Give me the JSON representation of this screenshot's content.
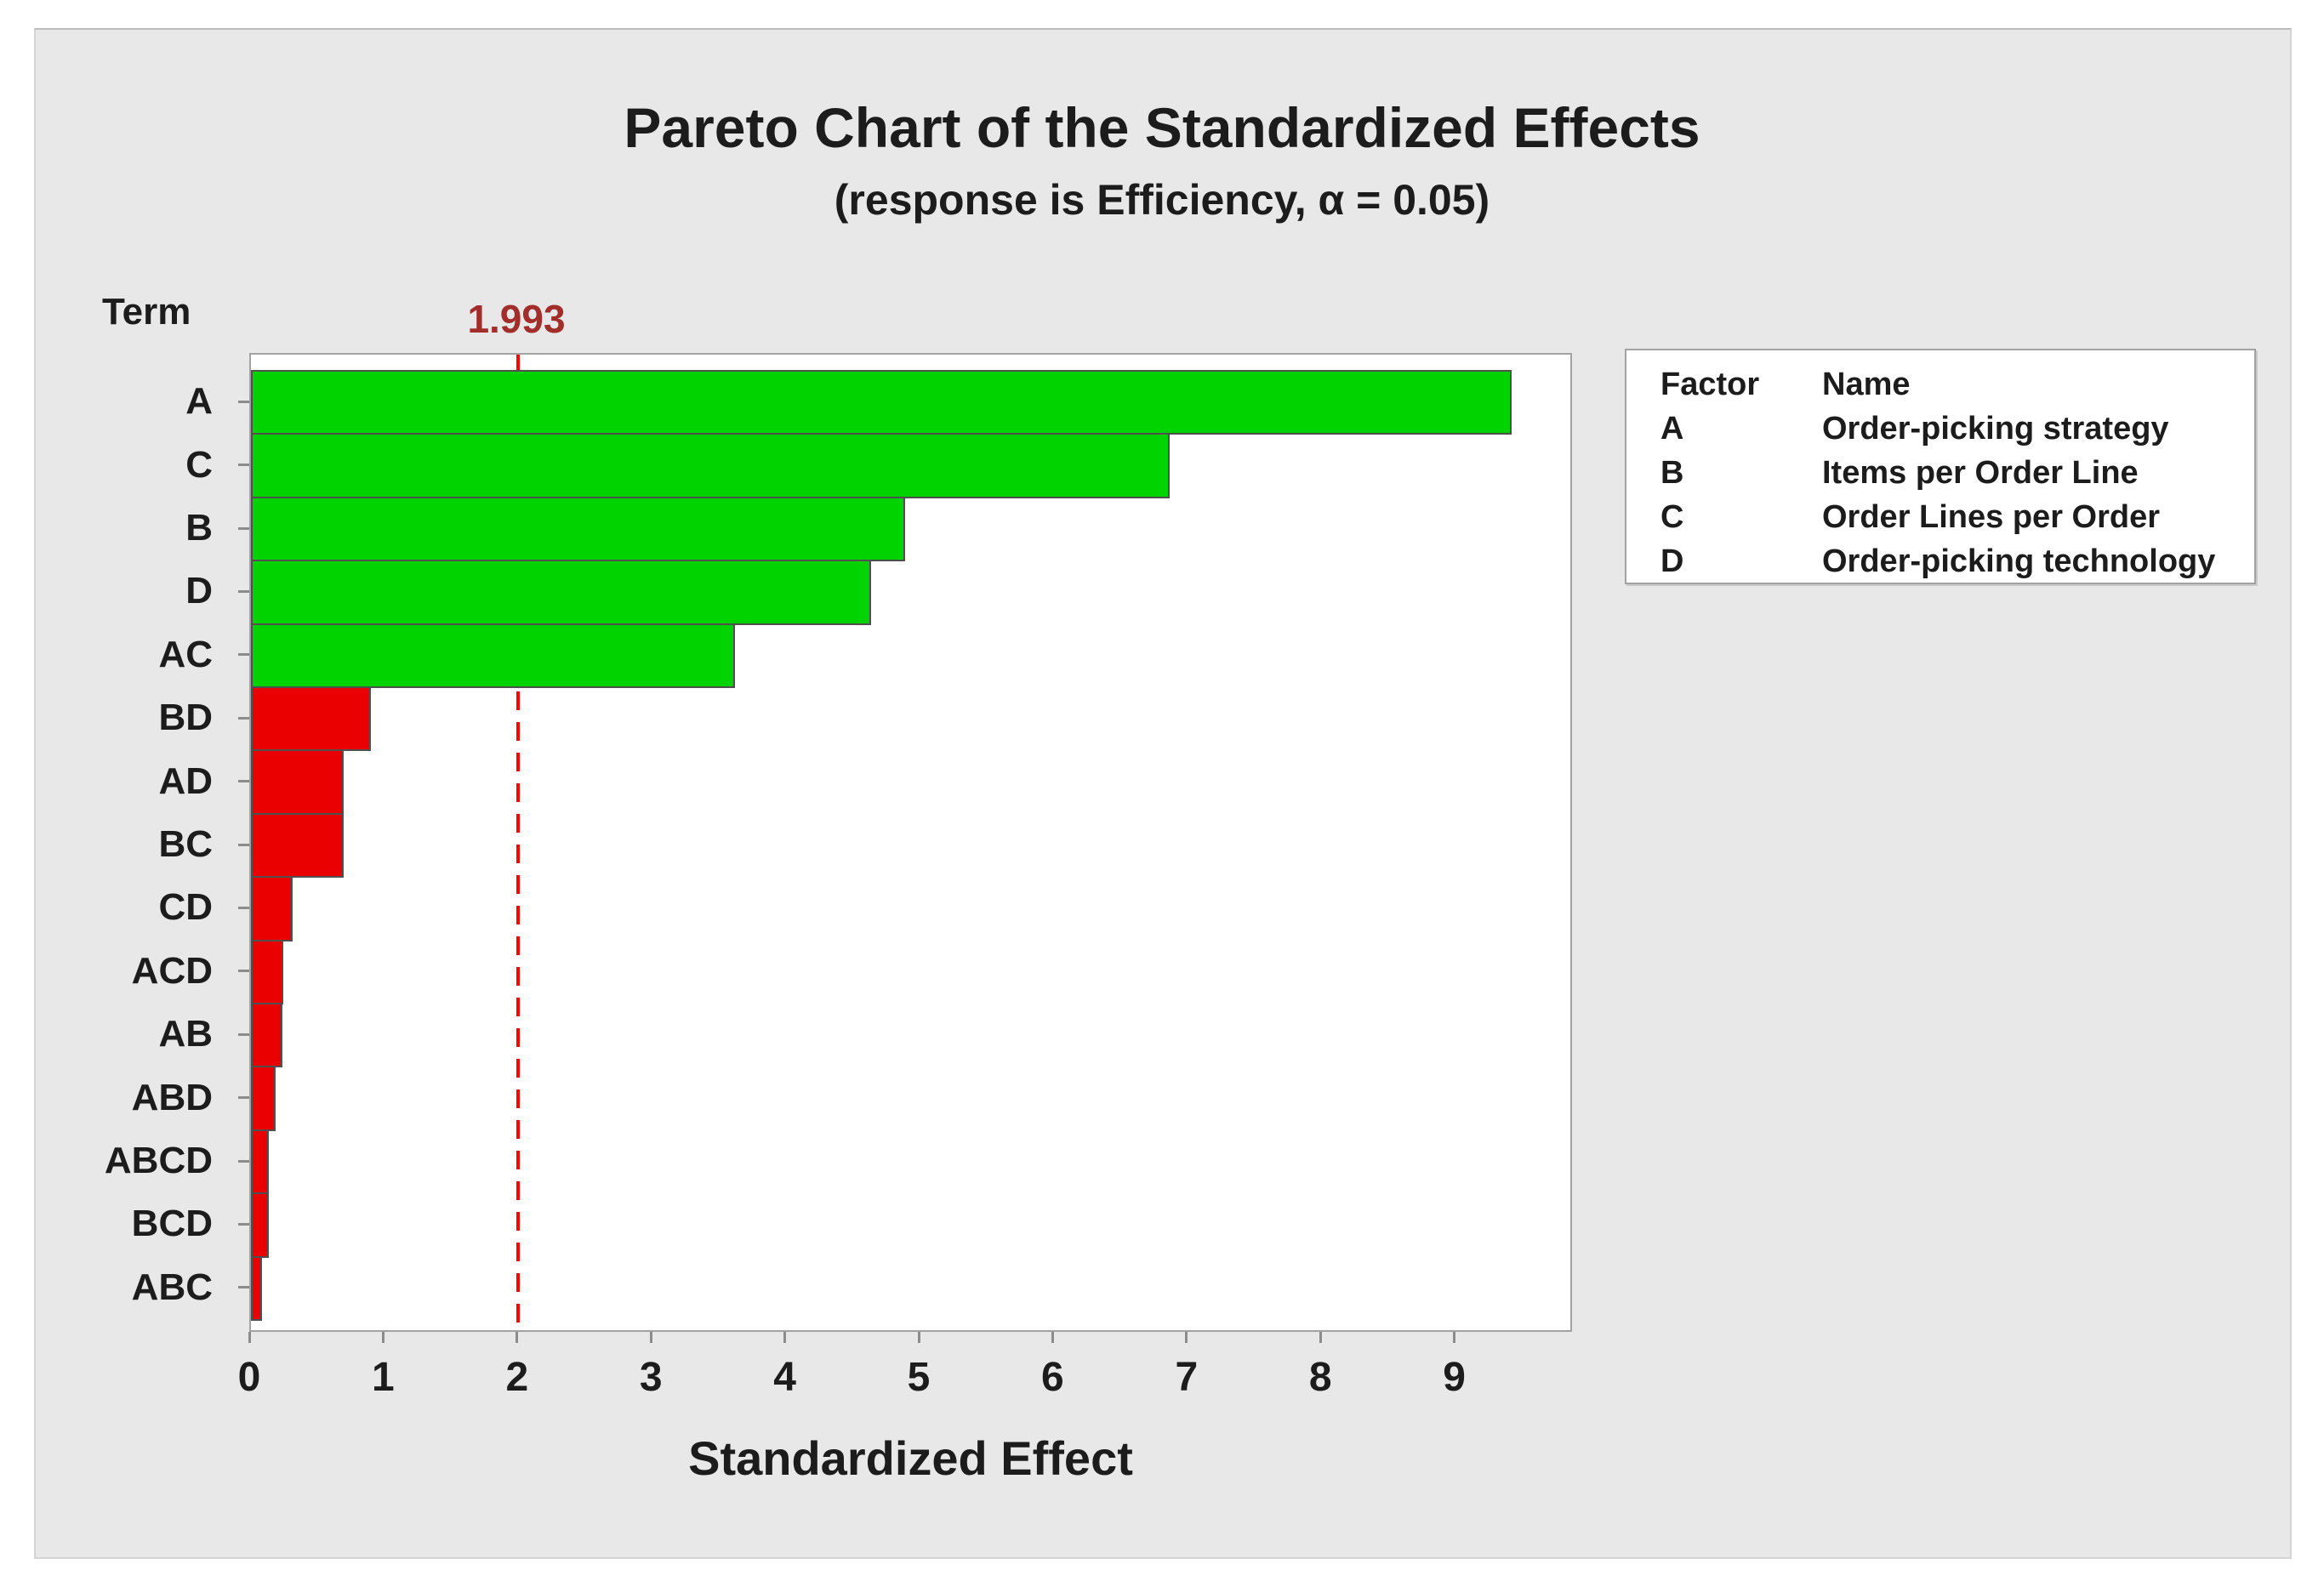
{
  "page": {
    "background": "#ffffff",
    "canvas_background": "#e8e8e8"
  },
  "chart_data": {
    "type": "bar",
    "orientation": "horizontal",
    "title": "Pareto Chart of the Standardized Effects",
    "subtitle": "(response is Efficiency, α = 0.05)",
    "xlabel": "Standardized Effect",
    "y_axis_header": "Term",
    "x_ticks": [
      0,
      1,
      2,
      3,
      4,
      5,
      6,
      7,
      8,
      9
    ],
    "xlim": [
      0,
      9.88
    ],
    "grid": false,
    "reference_line": {
      "value": 2.0,
      "label": "1.993",
      "line_color": "#ff0000",
      "label_color": "#a12e2a",
      "style": "dashed"
    },
    "categories": [
      "A",
      "C",
      "B",
      "D",
      "AC",
      "BD",
      "AD",
      "BC",
      "CD",
      "ACD",
      "AB",
      "ABD",
      "ABCD",
      "BCD",
      "ABC"
    ],
    "values": [
      9.4,
      6.85,
      4.87,
      4.62,
      3.6,
      0.88,
      0.68,
      0.68,
      0.3,
      0.23,
      0.22,
      0.17,
      0.12,
      0.12,
      0.07
    ],
    "significant": [
      true,
      true,
      true,
      true,
      true,
      false,
      false,
      false,
      false,
      false,
      false,
      false,
      false,
      false,
      false
    ],
    "colors": {
      "significant_bar": "#00d300",
      "not_significant_bar": "#ea0000",
      "bar_border": "#4f4f4f",
      "tick": "#8c8c8c",
      "text": "#1c1c1c"
    },
    "legend": {
      "position": "right",
      "header": {
        "factor": "Factor",
        "name": "Name"
      },
      "rows": [
        {
          "factor": "A",
          "name": "Order-picking strategy"
        },
        {
          "factor": "B",
          "name": "Items per Order Line"
        },
        {
          "factor": "C",
          "name": "Order Lines per Order"
        },
        {
          "factor": "D",
          "name": "Order-picking technology"
        }
      ]
    }
  }
}
